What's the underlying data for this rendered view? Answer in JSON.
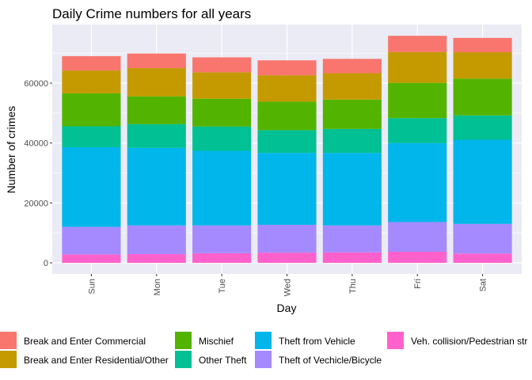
{
  "chart_data": {
    "type": "bar",
    "stacked": true,
    "title": "Daily Crime numbers for all years",
    "xlabel": "Day",
    "ylabel": "Number of crimes",
    "categories": [
      "Sun",
      "Mon",
      "Tue",
      "Wed",
      "Thu",
      "Fri",
      "Sat"
    ],
    "ylim": [
      0,
      75000
    ],
    "yticks": [
      0,
      20000,
      40000,
      60000
    ],
    "ytick_labels": [
      "0",
      "20000",
      "40000",
      "60000"
    ],
    "grid": true,
    "legend_position": "bottom",
    "series": [
      {
        "name": "Veh. collision/Pedestrian str",
        "color": "#FF61CC",
        "values": [
          2800,
          2900,
          3200,
          3400,
          3500,
          3700,
          3100
        ]
      },
      {
        "name": "Theft of Vechicle/Bicycle",
        "color": "#A58AFF",
        "values": [
          9200,
          9600,
          9300,
          9300,
          9000,
          9900,
          9900
        ]
      },
      {
        "name": "Theft from Vehicle",
        "color": "#00B6EB",
        "values": [
          26600,
          25900,
          24900,
          24000,
          24200,
          26400,
          28100
        ]
      },
      {
        "name": "Other Theft",
        "color": "#00C094",
        "values": [
          7000,
          7900,
          8100,
          7600,
          8000,
          8300,
          8100
        ]
      },
      {
        "name": "Mischief",
        "color": "#53B400",
        "values": [
          11000,
          9300,
          9300,
          9500,
          9800,
          11800,
          12300
        ]
      },
      {
        "name": "Break and Enter Residential/Other",
        "color": "#C49A00",
        "values": [
          7600,
          9400,
          8800,
          8800,
          8800,
          10300,
          8800
        ]
      },
      {
        "name": "Break and Enter Commercial",
        "color": "#F8766D",
        "values": [
          4800,
          4900,
          5000,
          5000,
          4800,
          5400,
          4800
        ]
      }
    ],
    "legend_items": [
      {
        "name": "Break and Enter Commercial",
        "color": "#F8766D"
      },
      {
        "name": "Break and Enter Residential/Other",
        "color": "#C49A00"
      },
      {
        "name": "Mischief",
        "color": "#53B400"
      },
      {
        "name": "Other Theft",
        "color": "#00C094"
      },
      {
        "name": "Theft from Vehicle",
        "color": "#00B6EB"
      },
      {
        "name": "Theft of Vechicle/Bicycle",
        "color": "#A58AFF"
      },
      {
        "name": "Veh. collision/Pedestrian str",
        "color": "#FF61CC"
      }
    ],
    "panel_background": "#EBEBF5"
  }
}
